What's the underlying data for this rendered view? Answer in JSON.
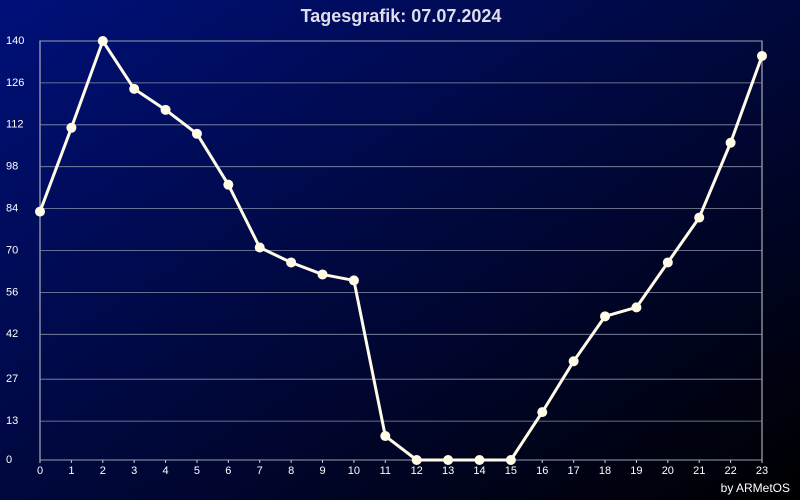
{
  "chart_data": {
    "type": "line",
    "title": "Tagesgrafik: 07.07.2024",
    "credit": "by ARMetOS",
    "x": [
      0,
      1,
      2,
      3,
      4,
      5,
      6,
      7,
      8,
      9,
      10,
      11,
      12,
      13,
      14,
      15,
      16,
      17,
      18,
      19,
      20,
      21,
      22,
      23
    ],
    "series": [
      {
        "color": "#fffbe6",
        "values": [
          83,
          111,
          140,
          124,
          117,
          109,
          92,
          71,
          66,
          62,
          60,
          8,
          0,
          0,
          0,
          0,
          16,
          33,
          48,
          51,
          66,
          81,
          106,
          135
        ]
      }
    ],
    "xlim": [
      0,
      23
    ],
    "xticks": [
      0,
      1,
      2,
      3,
      4,
      5,
      6,
      7,
      8,
      9,
      10,
      11,
      12,
      13,
      14,
      15,
      16,
      17,
      18,
      19,
      20,
      21,
      22,
      23
    ],
    "ylim": [
      0,
      140
    ],
    "yticks": [
      0,
      13,
      27,
      42,
      56,
      70,
      84,
      98,
      112,
      126,
      140
    ],
    "grid": true
  }
}
